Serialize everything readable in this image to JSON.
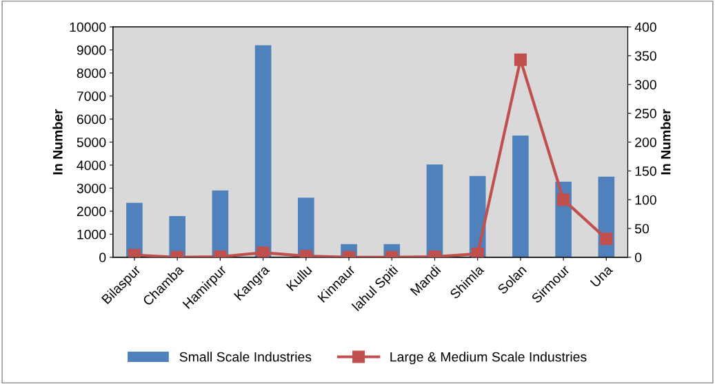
{
  "chart_data": {
    "type": "bar",
    "ylabel": "In Number",
    "y2label": "In Number",
    "categories": [
      "Bilaspur",
      "Chamba",
      "Hamirpur",
      "Kangra",
      "Kullu",
      "Kinnaur",
      "lahul Spiti",
      "Mandi",
      "Shimla",
      "Solan",
      "Sirmour",
      "Una"
    ],
    "series": [
      {
        "name": "Small Scale Industries",
        "color": "#4f81bd",
        "values": [
          2360,
          1790,
          2900,
          9200,
          2590,
          570,
          570,
          4030,
          3530,
          5280,
          3280,
          3500
        ]
      },
      {
        "name": "Large & Medium Scale Industries",
        "type": "line",
        "axis": "y2",
        "color": "#c0504d",
        "marker": "square",
        "values": [
          4,
          0,
          1,
          8,
          2,
          0,
          0,
          1,
          6,
          343,
          100,
          32
        ]
      }
    ],
    "ylim": [
      0,
      10000
    ],
    "yticks": [
      0,
      1000,
      2000,
      3000,
      4000,
      5000,
      6000,
      7000,
      8000,
      9000,
      10000
    ],
    "y2lim": [
      0,
      400
    ],
    "y2ticks": [
      0,
      50,
      100,
      150,
      200,
      250,
      300,
      350,
      400
    ],
    "grid": false,
    "legend": "bottom"
  }
}
